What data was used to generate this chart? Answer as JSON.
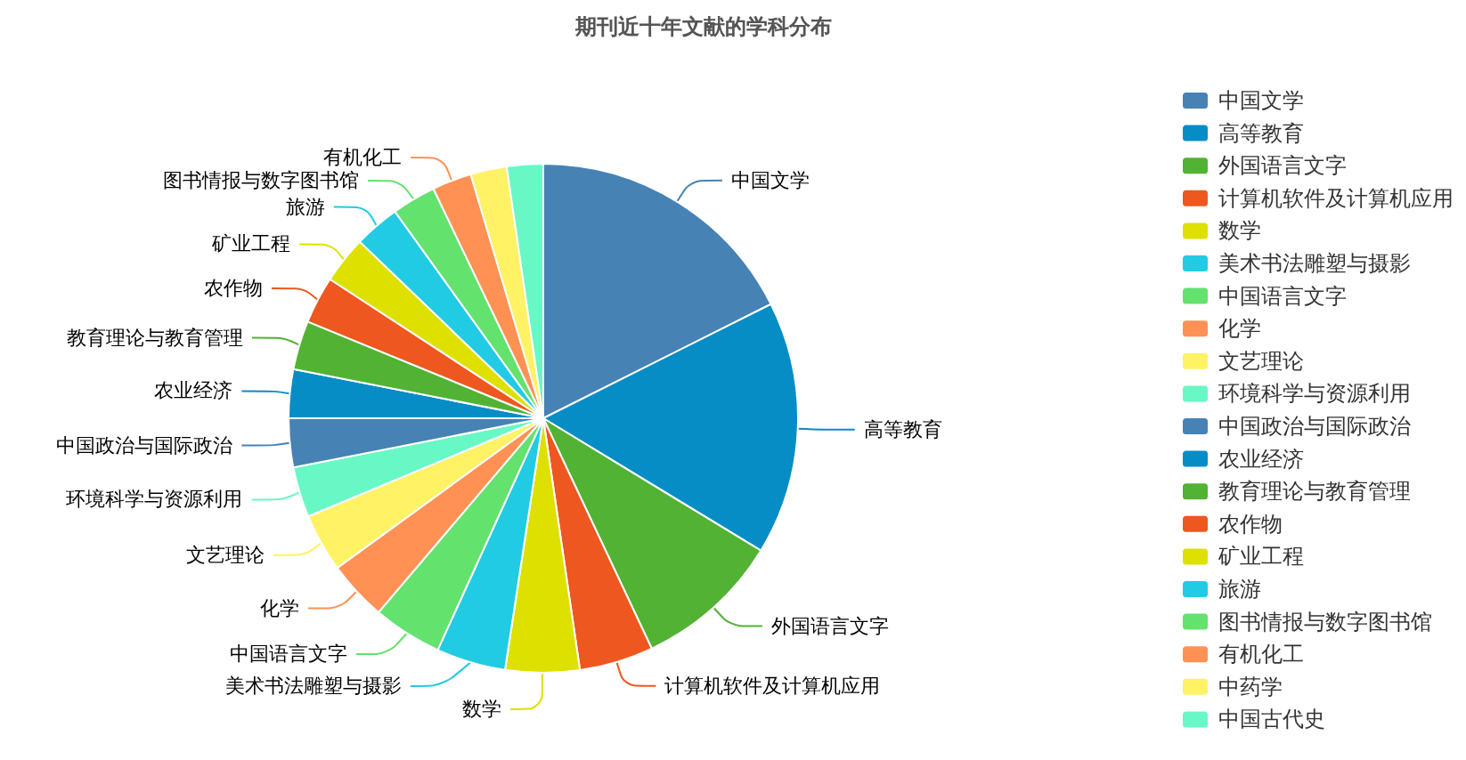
{
  "chart_data": {
    "type": "pie",
    "title": "期刊近十年文献的学科分布",
    "categories": [
      "中国文学",
      "高等教育",
      "外国语言文字",
      "计算机软件及计算机应用",
      "数学",
      "美术书法雕塑与摄影",
      "中国语言文字",
      "化学",
      "文艺理论",
      "环境科学与资源利用",
      "中国政治与国际政治",
      "农业经济",
      "教育理论与教育管理",
      "农作物",
      "矿业工程",
      "旅游",
      "图书情报与数字图书馆",
      "有机化工",
      "中药学",
      "中国古代史"
    ],
    "values": [
      17.6,
      16.1,
      9.3,
      4.7,
      4.7,
      4.4,
      4.4,
      3.8,
      3.7,
      3.2,
      3.1,
      3.1,
      3.1,
      3.0,
      3.0,
      2.9,
      2.8,
      2.5,
      2.3,
      2.3
    ],
    "colors": [
      "#4682b4",
      "#078dc6",
      "#52b233",
      "#ee571f",
      "#dee000",
      "#22cbe4",
      "#63e26e",
      "#ff9155",
      "#fff265",
      "#68f8c5",
      "#4682b4",
      "#078dc6",
      "#52b233",
      "#ee571f",
      "#dee000",
      "#22cbe4",
      "#63e26e",
      "#ff9155",
      "#fff265",
      "#68f8c5"
    ],
    "value_labels": [
      "中国文学",
      "高等教育",
      "外国语言文字",
      "计算机软件及计算机应用",
      "数学",
      "美术书法雕塑与摄影",
      "中国语言文字",
      "化学",
      "文艺理论",
      "环境科学与资源利用",
      "中国政治与国际政治",
      "农业经济",
      "教育理论与教育管理",
      "农作物",
      "矿业工程",
      "旅游",
      "图书情报与数字图书馆",
      "有机化工",
      null,
      null
    ],
    "legend": "right"
  }
}
